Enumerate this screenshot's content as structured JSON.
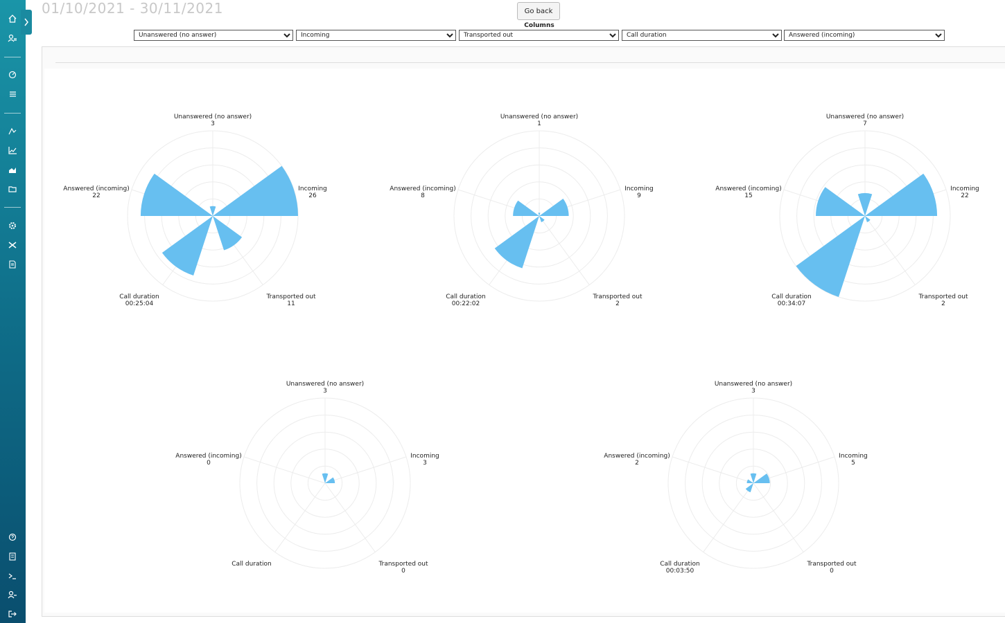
{
  "header": {
    "date_range": "01/10/2021 - 30/11/2021",
    "go_back": "Go back",
    "columns_label": "Columns",
    "column_selects": [
      "Unanswered (no answer)",
      "Incoming",
      "Transported out",
      "Call duration",
      "Answered (incoming)"
    ]
  },
  "chart_data": [
    {
      "type": "polarArea",
      "color": "#67bff0",
      "categories": [
        "Unanswered (no answer)",
        "Incoming",
        "Transported out",
        "Call duration",
        "Answered (incoming)"
      ],
      "values": [
        3,
        26,
        11,
        1504,
        22
      ],
      "value_labels": [
        null,
        null,
        null,
        "00:25:04",
        null
      ]
    },
    {
      "type": "polarArea",
      "color": "#67bff0",
      "categories": [
        "Unanswered (no answer)",
        "Incoming",
        "Transported out",
        "Call duration",
        "Answered (incoming)"
      ],
      "values": [
        1,
        9,
        2,
        1322,
        8
      ],
      "value_labels": [
        null,
        null,
        null,
        "00:22:02",
        null
      ]
    },
    {
      "type": "polarArea",
      "color": "#67bff0",
      "categories": [
        "Unanswered (no answer)",
        "Incoming",
        "Transported out",
        "Call duration",
        "Answered (incoming)"
      ],
      "values": [
        7,
        22,
        2,
        2047,
        15
      ],
      "value_labels": [
        null,
        null,
        null,
        "00:34:07",
        null
      ]
    },
    {
      "type": "polarArea",
      "color": "#67bff0",
      "categories": [
        "Unanswered (no answer)",
        "Incoming",
        "Transported out",
        "Call duration",
        "Answered (incoming)"
      ],
      "values": [
        3,
        3,
        0,
        null,
        0
      ],
      "value_labels": [
        null,
        null,
        null,
        null,
        null
      ]
    },
    {
      "type": "polarArea",
      "color": "#67bff0",
      "categories": [
        "Unanswered (no answer)",
        "Incoming",
        "Transported out",
        "Call duration",
        "Answered (incoming)"
      ],
      "values": [
        3,
        5,
        0,
        230,
        2
      ],
      "value_labels": [
        null,
        null,
        null,
        "00:03:50",
        null
      ]
    }
  ]
}
